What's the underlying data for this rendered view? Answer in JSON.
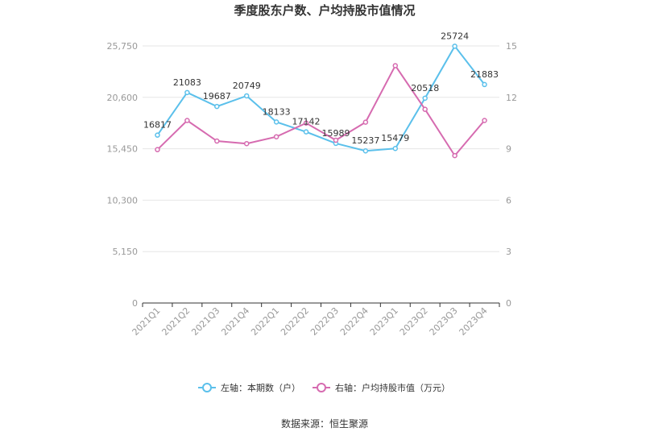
{
  "chart_data": {
    "type": "line",
    "title": "季度股东户数、户均持股市值情况",
    "categories": [
      "2021Q1",
      "2021Q2",
      "2021Q3",
      "2021Q4",
      "2022Q1",
      "2022Q2",
      "2022Q3",
      "2022Q4",
      "2023Q1",
      "2023Q2",
      "2023Q3",
      "2023Q4"
    ],
    "left_axis": {
      "ticks": [
        "0",
        "5,150",
        "10,300",
        "15,450",
        "20,600",
        "25,750"
      ],
      "ylim": [
        0,
        25750
      ]
    },
    "right_axis": {
      "ticks": [
        "0",
        "3",
        "6",
        "9",
        "12",
        "15"
      ],
      "ylim": [
        0,
        15
      ]
    },
    "series": [
      {
        "name": "左轴：本期数（户）",
        "axis": "left",
        "color": "#5bc0eb",
        "values": [
          16817,
          21083,
          19687,
          20749,
          18133,
          17142,
          15989,
          15237,
          15479,
          20518,
          25724,
          21883
        ],
        "labels": [
          "16817",
          "21083",
          "19687",
          "20749",
          "18133",
          "17142",
          "15989",
          "15237",
          "15479",
          "20518",
          "25724",
          "21883"
        ]
      },
      {
        "name": "右轴：户均持股市值（万元）",
        "axis": "right",
        "color": "#d66bb0",
        "values": [
          8.95,
          10.65,
          9.45,
          9.3,
          9.7,
          10.5,
          9.5,
          10.55,
          13.85,
          11.3,
          8.6,
          10.65
        ]
      }
    ],
    "grid": true,
    "legend": "bottom"
  },
  "source": "数据来源：恒生聚源"
}
